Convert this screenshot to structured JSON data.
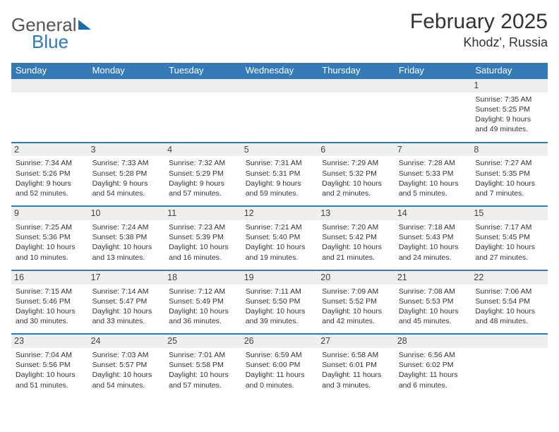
{
  "logo": {
    "word1": "General",
    "word2": "Blue"
  },
  "title": {
    "month": "February 2025",
    "location": "Khodz', Russia"
  },
  "colors": {
    "header_bg": "#347ab6",
    "header_text": "#ffffff",
    "daynum_bg": "#efefef",
    "border": "#347ab6",
    "text": "#333333"
  },
  "weekday_labels": [
    "Sunday",
    "Monday",
    "Tuesday",
    "Wednesday",
    "Thursday",
    "Friday",
    "Saturday"
  ],
  "weeks": [
    [
      null,
      null,
      null,
      null,
      null,
      null,
      {
        "n": "1",
        "sr": "7:35 AM",
        "ss": "5:25 PM",
        "dl": "9 hours and 49 minutes."
      }
    ],
    [
      {
        "n": "2",
        "sr": "7:34 AM",
        "ss": "5:26 PM",
        "dl": "9 hours and 52 minutes."
      },
      {
        "n": "3",
        "sr": "7:33 AM",
        "ss": "5:28 PM",
        "dl": "9 hours and 54 minutes."
      },
      {
        "n": "4",
        "sr": "7:32 AM",
        "ss": "5:29 PM",
        "dl": "9 hours and 57 minutes."
      },
      {
        "n": "5",
        "sr": "7:31 AM",
        "ss": "5:31 PM",
        "dl": "9 hours and 59 minutes."
      },
      {
        "n": "6",
        "sr": "7:29 AM",
        "ss": "5:32 PM",
        "dl": "10 hours and 2 minutes."
      },
      {
        "n": "7",
        "sr": "7:28 AM",
        "ss": "5:33 PM",
        "dl": "10 hours and 5 minutes."
      },
      {
        "n": "8",
        "sr": "7:27 AM",
        "ss": "5:35 PM",
        "dl": "10 hours and 7 minutes."
      }
    ],
    [
      {
        "n": "9",
        "sr": "7:25 AM",
        "ss": "5:36 PM",
        "dl": "10 hours and 10 minutes."
      },
      {
        "n": "10",
        "sr": "7:24 AM",
        "ss": "5:38 PM",
        "dl": "10 hours and 13 minutes."
      },
      {
        "n": "11",
        "sr": "7:23 AM",
        "ss": "5:39 PM",
        "dl": "10 hours and 16 minutes."
      },
      {
        "n": "12",
        "sr": "7:21 AM",
        "ss": "5:40 PM",
        "dl": "10 hours and 19 minutes."
      },
      {
        "n": "13",
        "sr": "7:20 AM",
        "ss": "5:42 PM",
        "dl": "10 hours and 21 minutes."
      },
      {
        "n": "14",
        "sr": "7:18 AM",
        "ss": "5:43 PM",
        "dl": "10 hours and 24 minutes."
      },
      {
        "n": "15",
        "sr": "7:17 AM",
        "ss": "5:45 PM",
        "dl": "10 hours and 27 minutes."
      }
    ],
    [
      {
        "n": "16",
        "sr": "7:15 AM",
        "ss": "5:46 PM",
        "dl": "10 hours and 30 minutes."
      },
      {
        "n": "17",
        "sr": "7:14 AM",
        "ss": "5:47 PM",
        "dl": "10 hours and 33 minutes."
      },
      {
        "n": "18",
        "sr": "7:12 AM",
        "ss": "5:49 PM",
        "dl": "10 hours and 36 minutes."
      },
      {
        "n": "19",
        "sr": "7:11 AM",
        "ss": "5:50 PM",
        "dl": "10 hours and 39 minutes."
      },
      {
        "n": "20",
        "sr": "7:09 AM",
        "ss": "5:52 PM",
        "dl": "10 hours and 42 minutes."
      },
      {
        "n": "21",
        "sr": "7:08 AM",
        "ss": "5:53 PM",
        "dl": "10 hours and 45 minutes."
      },
      {
        "n": "22",
        "sr": "7:06 AM",
        "ss": "5:54 PM",
        "dl": "10 hours and 48 minutes."
      }
    ],
    [
      {
        "n": "23",
        "sr": "7:04 AM",
        "ss": "5:56 PM",
        "dl": "10 hours and 51 minutes."
      },
      {
        "n": "24",
        "sr": "7:03 AM",
        "ss": "5:57 PM",
        "dl": "10 hours and 54 minutes."
      },
      {
        "n": "25",
        "sr": "7:01 AM",
        "ss": "5:58 PM",
        "dl": "10 hours and 57 minutes."
      },
      {
        "n": "26",
        "sr": "6:59 AM",
        "ss": "6:00 PM",
        "dl": "11 hours and 0 minutes."
      },
      {
        "n": "27",
        "sr": "6:58 AM",
        "ss": "6:01 PM",
        "dl": "11 hours and 3 minutes."
      },
      {
        "n": "28",
        "sr": "6:56 AM",
        "ss": "6:02 PM",
        "dl": "11 hours and 6 minutes."
      },
      null
    ]
  ],
  "labels": {
    "sunrise": "Sunrise:",
    "sunset": "Sunset:",
    "daylight": "Daylight:"
  }
}
